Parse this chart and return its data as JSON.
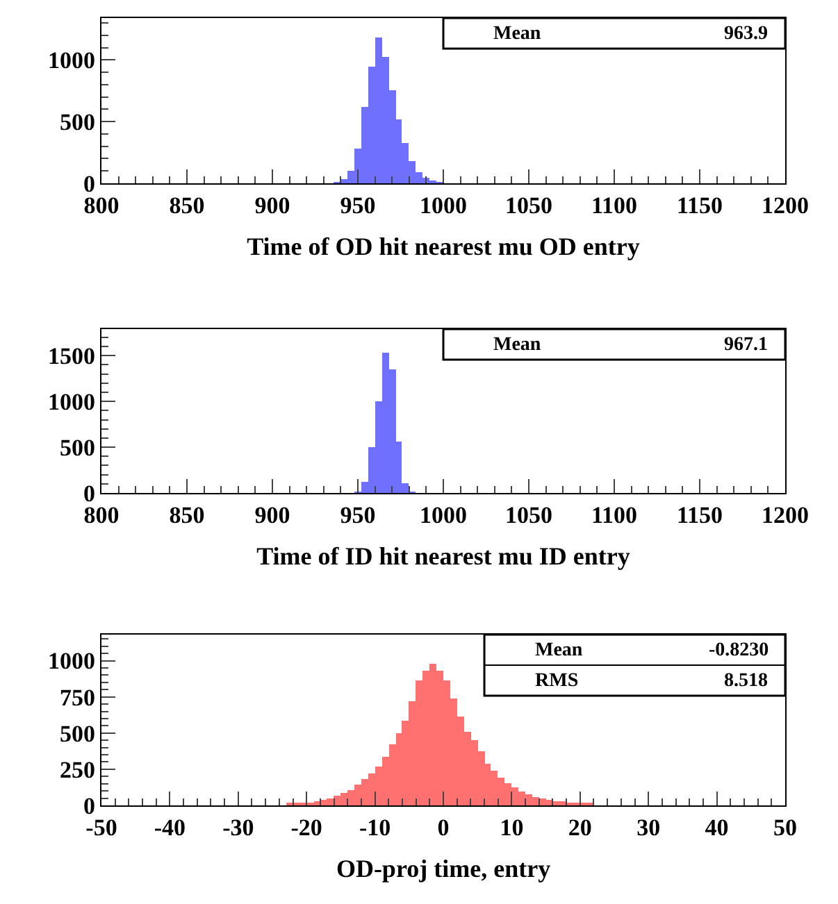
{
  "chart_data": [
    {
      "type": "histogram",
      "xlabel": "Time of OD hit nearest mu OD entry",
      "color": "#7070ff",
      "annotations": [
        "Mean",
        "963.9"
      ],
      "bins": [
        936,
        940,
        944,
        948,
        952,
        956,
        960,
        964,
        968,
        972,
        976,
        980,
        984,
        988,
        992,
        996,
        1000
      ],
      "values": [
        10,
        30,
        100,
        280,
        620,
        950,
        1180,
        1020,
        760,
        520,
        330,
        180,
        90,
        40,
        20,
        10
      ],
      "xlim": [
        800,
        1200
      ],
      "xticks": [
        800,
        850,
        900,
        950,
        1000,
        1050,
        1100,
        1150,
        1200
      ],
      "ylim": [
        0,
        1340
      ],
      "yticks": [
        0,
        500,
        1000
      ],
      "legend": false
    },
    {
      "type": "histogram",
      "xlabel": "Time of ID hit nearest mu ID entry",
      "color": "#7070ff",
      "annotations": [
        "Mean",
        "967.1"
      ],
      "bins": [
        948,
        952,
        956,
        960,
        964,
        968,
        972,
        976,
        980,
        984
      ],
      "values": [
        10,
        120,
        500,
        1000,
        1530,
        1350,
        560,
        100,
        10
      ],
      "xlim": [
        800,
        1200
      ],
      "xticks": [
        800,
        850,
        900,
        950,
        1000,
        1050,
        1100,
        1150,
        1200
      ],
      "ylim": [
        0,
        1790
      ],
      "yticks": [
        0,
        500,
        1000,
        1500
      ],
      "legend": false
    },
    {
      "type": "histogram",
      "xlabel": "OD-proj time, entry",
      "color": "#ff7070",
      "annotations": [
        "Mean",
        "-0.8230",
        "RMS",
        "8.518"
      ],
      "bins": [
        -25,
        -24,
        -23,
        -22,
        -21,
        -20,
        -19,
        -18,
        -17,
        -16,
        -15,
        -14,
        -13,
        -12,
        -11,
        -10,
        -9,
        -8,
        -7,
        -6,
        -5,
        -4,
        -3,
        -2,
        -1,
        0,
        1,
        2,
        3,
        4,
        5,
        6,
        7,
        8,
        9,
        10,
        11,
        12,
        13,
        14,
        15,
        16,
        17,
        18,
        19,
        20,
        21,
        22,
        23,
        24,
        25
      ],
      "values": [
        0,
        0,
        10,
        10,
        10,
        20,
        30,
        40,
        50,
        70,
        90,
        110,
        140,
        180,
        220,
        270,
        340,
        420,
        500,
        590,
        720,
        860,
        930,
        980,
        930,
        860,
        740,
        610,
        510,
        450,
        370,
        290,
        240,
        190,
        150,
        120,
        100,
        80,
        60,
        48,
        40,
        30,
        30,
        20,
        20,
        10,
        10,
        0,
        0,
        0
      ],
      "xlim": [
        -50,
        50
      ],
      "xticks": [
        -50,
        -40,
        -30,
        -20,
        -10,
        0,
        10,
        20,
        30,
        40,
        50
      ],
      "ylim": [
        0,
        1180
      ],
      "yticks": [
        0,
        250,
        500,
        750,
        1000
      ],
      "legend": false
    }
  ]
}
